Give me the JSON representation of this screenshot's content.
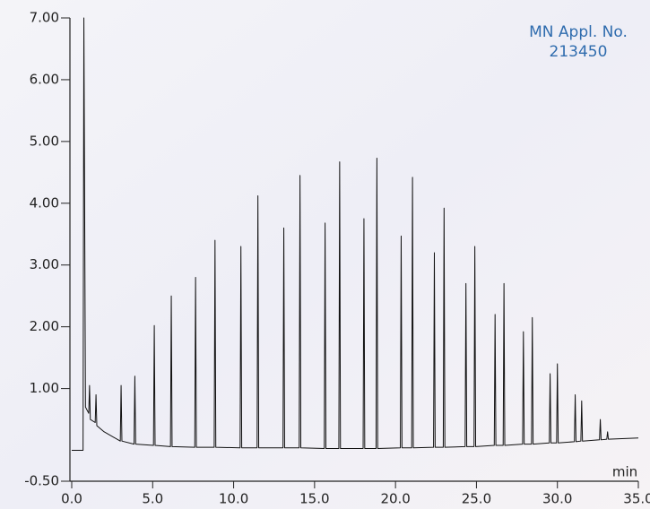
{
  "chart_data": {
    "type": "line",
    "annotation": [
      "MN Appl. No.",
      "213450"
    ],
    "x_label": "min",
    "xlim": [
      0,
      35
    ],
    "xticks": [
      {
        "value": 0,
        "label": "0.0"
      },
      {
        "value": 5,
        "label": "5.0"
      },
      {
        "value": 10,
        "label": "10.0"
      },
      {
        "value": 15,
        "label": "15.0"
      },
      {
        "value": 20,
        "label": "20.0"
      },
      {
        "value": 25,
        "label": "25.0"
      },
      {
        "value": 30,
        "label": "30.0"
      },
      {
        "value": 35,
        "label": "35.0"
      }
    ],
    "ylim": [
      -0.5,
      7.0
    ],
    "yticks": [
      {
        "value": -0.5,
        "label": "-0.50"
      },
      {
        "value": 1,
        "label": "1.00"
      },
      {
        "value": 2,
        "label": "2.00"
      },
      {
        "value": 3,
        "label": "3.00"
      },
      {
        "value": 4,
        "label": "4.00"
      },
      {
        "value": 5,
        "label": "5.00"
      },
      {
        "value": 6,
        "label": "6.00"
      },
      {
        "value": 7,
        "label": "7.00"
      }
    ],
    "color": "#111111",
    "x": [
      0.0,
      0.7,
      0.75,
      0.85,
      1.05,
      1.1,
      1.15,
      1.45,
      1.5,
      1.55,
      2.0,
      3.0,
      3.05,
      3.1,
      3.85,
      3.9,
      3.95,
      5.05,
      5.1,
      5.15,
      6.1,
      6.15,
      6.2,
      7.6,
      7.65,
      7.7,
      8.8,
      8.85,
      8.9,
      10.4,
      10.45,
      10.5,
      11.45,
      11.5,
      11.55,
      13.05,
      13.1,
      13.15,
      14.05,
      14.1,
      14.15,
      15.6,
      15.65,
      15.7,
      16.5,
      16.55,
      16.6,
      18.0,
      18.05,
      18.1,
      18.8,
      18.85,
      18.9,
      20.3,
      20.35,
      20.4,
      21.0,
      21.05,
      21.1,
      22.35,
      22.4,
      22.45,
      22.95,
      23.0,
      23.05,
      24.3,
      24.35,
      24.4,
      24.85,
      24.9,
      24.95,
      26.1,
      26.15,
      26.2,
      26.65,
      26.7,
      26.75,
      27.85,
      27.9,
      27.95,
      28.4,
      28.45,
      28.5,
      29.5,
      29.55,
      29.6,
      29.95,
      30.0,
      30.05,
      31.05,
      31.1,
      31.15,
      31.45,
      31.5,
      31.55,
      32.6,
      32.65,
      32.7,
      33.05,
      33.1,
      33.15,
      35.0
    ],
    "values": [
      0.0,
      0.0,
      7.0,
      0.7,
      0.6,
      1.05,
      0.5,
      0.45,
      0.9,
      0.4,
      0.3,
      0.15,
      1.05,
      0.15,
      0.1,
      1.2,
      0.1,
      0.08,
      2.02,
      0.08,
      0.06,
      2.5,
      0.06,
      0.05,
      2.8,
      0.05,
      0.05,
      3.4,
      0.05,
      0.04,
      3.3,
      0.04,
      0.04,
      4.12,
      0.04,
      0.04,
      3.6,
      0.04,
      0.04,
      4.45,
      0.04,
      0.03,
      3.68,
      0.03,
      0.03,
      4.67,
      0.03,
      0.03,
      3.75,
      0.03,
      0.03,
      4.73,
      0.03,
      0.04,
      3.47,
      0.04,
      0.04,
      4.42,
      0.04,
      0.05,
      3.2,
      0.05,
      0.05,
      3.92,
      0.05,
      0.06,
      2.7,
      0.06,
      0.06,
      3.3,
      0.06,
      0.08,
      2.2,
      0.08,
      0.08,
      2.7,
      0.08,
      0.1,
      1.92,
      0.1,
      0.1,
      2.15,
      0.1,
      0.12,
      1.24,
      0.12,
      0.12,
      1.4,
      0.12,
      0.14,
      0.9,
      0.14,
      0.15,
      0.8,
      0.15,
      0.17,
      0.5,
      0.17,
      0.18,
      0.3,
      0.18,
      0.2
    ]
  }
}
